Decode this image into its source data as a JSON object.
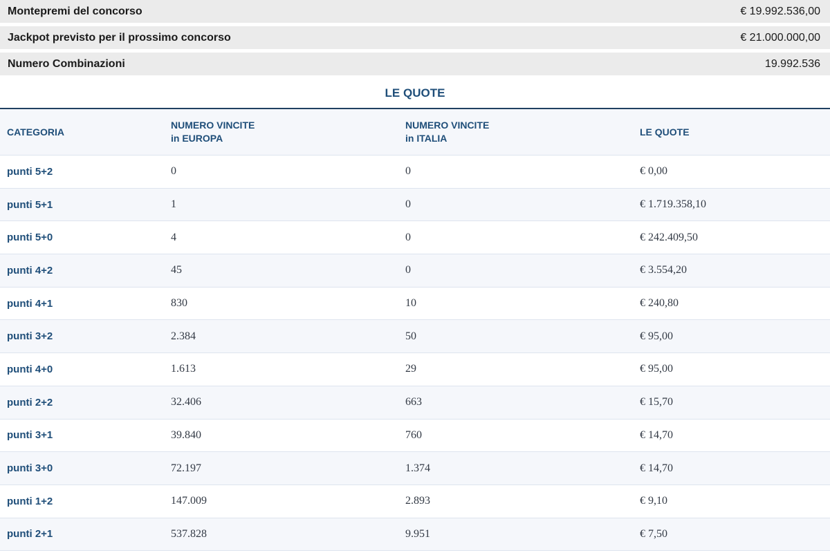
{
  "summary": [
    {
      "label": "Montepremi del concorso",
      "value": "€ 19.992.536,00"
    },
    {
      "label": "Jackpot previsto per il prossimo concorso",
      "value": "€ 21.000.000,00"
    },
    {
      "label": "Numero Combinazioni",
      "value": "19.992.536"
    }
  ],
  "section_title": "LE QUOTE",
  "table": {
    "headers": [
      {
        "line1": "CATEGORIA",
        "line2": ""
      },
      {
        "line1": "NUMERO VINCITE",
        "line2": "in EUROPA"
      },
      {
        "line1": "NUMERO VINCITE",
        "line2": "in ITALIA"
      },
      {
        "line1": "LE QUOTE",
        "line2": ""
      }
    ],
    "rows": [
      {
        "categoria": "punti 5+2",
        "europa": "0",
        "italia": "0",
        "quota": "€ 0,00"
      },
      {
        "categoria": "punti 5+1",
        "europa": "1",
        "italia": "0",
        "quota": "€ 1.719.358,10"
      },
      {
        "categoria": "punti 5+0",
        "europa": "4",
        "italia": "0",
        "quota": "€ 242.409,50"
      },
      {
        "categoria": "punti 4+2",
        "europa": "45",
        "italia": "0",
        "quota": "€ 3.554,20"
      },
      {
        "categoria": "punti 4+1",
        "europa": "830",
        "italia": "10",
        "quota": "€ 240,80"
      },
      {
        "categoria": "punti 3+2",
        "europa": "2.384",
        "italia": "50",
        "quota": "€ 95,00"
      },
      {
        "categoria": "punti 4+0",
        "europa": "1.613",
        "italia": "29",
        "quota": "€ 95,00"
      },
      {
        "categoria": "punti 2+2",
        "europa": "32.406",
        "italia": "663",
        "quota": "€ 15,70"
      },
      {
        "categoria": "punti 3+1",
        "europa": "39.840",
        "italia": "760",
        "quota": "€ 14,70"
      },
      {
        "categoria": "punti 3+0",
        "europa": "72.197",
        "italia": "1.374",
        "quota": "€ 14,70"
      },
      {
        "categoria": "punti 1+2",
        "europa": "147.009",
        "italia": "2.893",
        "quota": "€ 9,10"
      },
      {
        "categoria": "punti 2+1",
        "europa": "537.828",
        "italia": "9.951",
        "quota": "€ 7,50"
      }
    ]
  }
}
